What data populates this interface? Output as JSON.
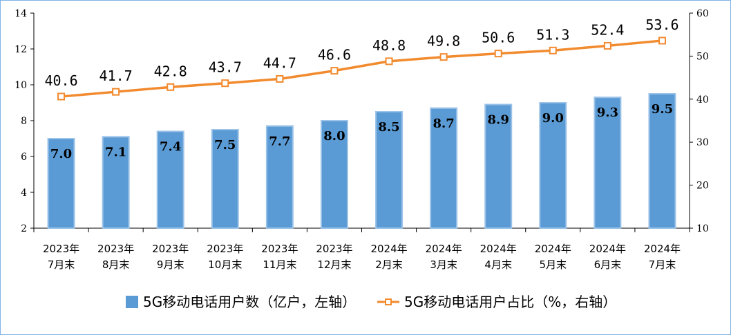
{
  "chart_data": {
    "type": "bar",
    "categories": [
      [
        "2023年",
        "7月末"
      ],
      [
        "2023年",
        "8月末"
      ],
      [
        "2023年",
        "9月末"
      ],
      [
        "2023年",
        "10月末"
      ],
      [
        "2023年",
        "11月末"
      ],
      [
        "2023年",
        "12月末"
      ],
      [
        "2024年",
        "2月末"
      ],
      [
        "2024年",
        "3月末"
      ],
      [
        "2024年",
        "4月末"
      ],
      [
        "2024年",
        "5月末"
      ],
      [
        "2024年",
        "6月末"
      ],
      [
        "2024年",
        "7月末"
      ]
    ],
    "series": [
      {
        "name": "5G移动电话用户数（亿户，左轴）",
        "type": "bar",
        "axis": "left",
        "color": "#5b9bd5",
        "values": [
          7.0,
          7.1,
          7.4,
          7.5,
          7.7,
          8.0,
          8.5,
          8.7,
          8.9,
          9.0,
          9.3,
          9.5
        ],
        "labels": [
          "7.0",
          "7.1",
          "7.4",
          "7.5",
          "7.7",
          "8.0",
          "8.5",
          "8.7",
          "8.9",
          "9.0",
          "9.3",
          "9.5"
        ]
      },
      {
        "name": "5G移动电话用户占比（%，右轴）",
        "type": "line",
        "axis": "right",
        "color": "#f28a2e",
        "values": [
          40.6,
          41.7,
          42.8,
          43.7,
          44.7,
          46.6,
          48.8,
          49.8,
          50.6,
          51.3,
          52.4,
          53.6
        ],
        "labels": [
          "40.6",
          "41.7",
          "42.8",
          "43.7",
          "44.7",
          "46.6",
          "48.8",
          "49.8",
          "50.6",
          "51.3",
          "52.4",
          "53.6"
        ]
      }
    ],
    "y_left": {
      "min": 2,
      "max": 14,
      "ticks": [
        "2",
        "4",
        "6",
        "8",
        "10",
        "12",
        "14"
      ]
    },
    "y_right": {
      "min": 10,
      "max": 60,
      "ticks": [
        "10",
        "20",
        "30",
        "40",
        "50",
        "60"
      ]
    },
    "grid": false,
    "legend_position": "bottom"
  }
}
